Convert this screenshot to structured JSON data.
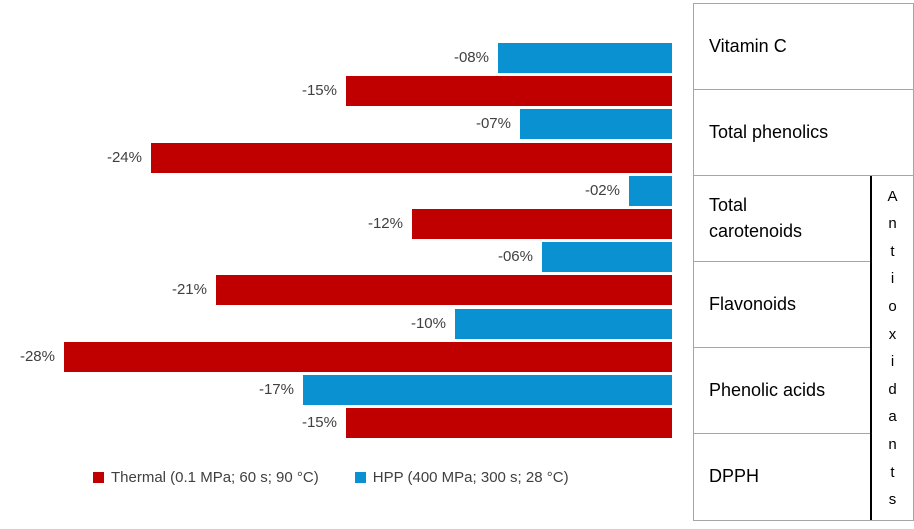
{
  "chart_data": {
    "type": "bar",
    "orientation": "horizontal-right-aligned",
    "title": "",
    "categories": [
      "Vitamin C",
      "Total phenolics",
      "Total carotenoids",
      "Flavonoids",
      "Phenolic acids",
      "DPPH"
    ],
    "series": [
      {
        "name": "HPP (400 MPa; 300 s; 28 °C)",
        "color": "#0A91D2",
        "values": [
          -8,
          -7,
          -2,
          -6,
          -10,
          -17
        ],
        "labels": [
          "-08%",
          "-07%",
          "-02%",
          "-06%",
          "-10%",
          "-17%"
        ]
      },
      {
        "name": "Thermal (0.1 MPa; 60 s; 90 °C)",
        "color": "#C00000",
        "values": [
          -15,
          -24,
          -12,
          -21,
          -28,
          -15
        ],
        "labels": [
          "-15%",
          "-24%",
          "-12%",
          "-21%",
          "-28%",
          "-15%"
        ]
      }
    ],
    "bar_order_top_to_bottom": "HPP bar above Thermal bar within each category",
    "value_axis": {
      "min": -31,
      "max": 0,
      "unit": "%",
      "gridlines": false,
      "axis_visible": false
    },
    "legend_position": "bottom",
    "label_color": "#404040"
  },
  "legend": {
    "items": [
      {
        "label": "Thermal (0.1 MPa; 60 s; 90 °C)",
        "color": "#C00000"
      },
      {
        "label": "HPP (400 MPa; 300 s; 28 °C)",
        "color": "#0A91D2"
      }
    ]
  },
  "side_table": {
    "rows": [
      "Vitamin C",
      "Total phenolics",
      "Total carotenoids",
      "Flavonoids",
      "Phenolic acids",
      "DPPH"
    ],
    "group_label": "Antioxidants",
    "group_label_orientation": "vertical-stacked-letters",
    "group_spans_rows": [
      "Total carotenoids",
      "Flavonoids",
      "Phenolic acids",
      "DPPH"
    ]
  }
}
